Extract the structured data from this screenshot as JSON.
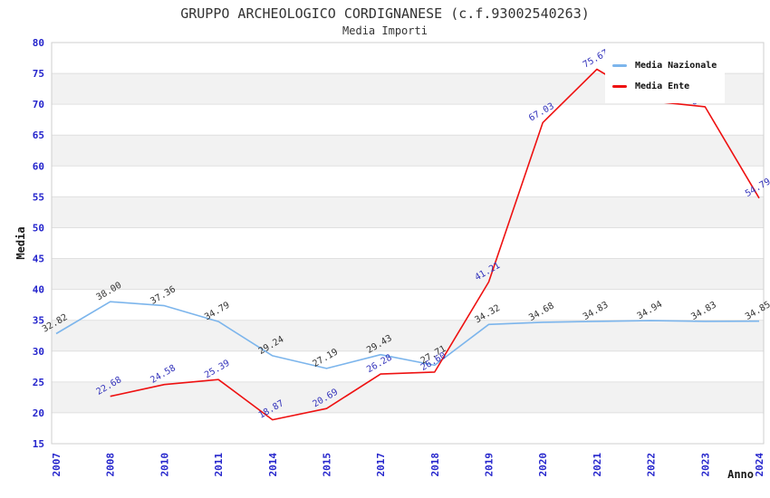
{
  "chart_data": {
    "type": "line",
    "title": "GRUPPO ARCHEOLOGICO CORDIGNANESE (c.f.93002540263)",
    "subtitle": "Media Importi",
    "xlabel": "Anno",
    "ylabel": "Media",
    "ylim": [
      15,
      80
    ],
    "ytick_step": 5,
    "grid": true,
    "legend_position": "top-right",
    "categories": [
      "2007",
      "2008",
      "2010",
      "2011",
      "2014",
      "2015",
      "2017",
      "2018",
      "2019",
      "2020",
      "2021",
      "2022",
      "2023",
      "2024"
    ],
    "series": [
      {
        "name": "Media Nazionale",
        "color": "#7cb5ec",
        "label_color": "#333333",
        "values": [
          32.82,
          38.0,
          37.36,
          34.79,
          29.24,
          27.19,
          29.43,
          27.71,
          34.32,
          34.68,
          34.83,
          34.94,
          34.83,
          34.85
        ],
        "labels": [
          "32.82",
          "38.00",
          "37.36",
          "34.79",
          "29.24",
          "27.19",
          "29.43",
          "27.71",
          "34.32",
          "34.68",
          "34.83",
          "34.94",
          "34.83",
          "34.85"
        ]
      },
      {
        "name": "Media Ente",
        "color": "#ee1111",
        "label_color": "#3333bb",
        "values": [
          null,
          22.68,
          24.58,
          25.39,
          18.87,
          20.69,
          26.28,
          26.6,
          41.21,
          67.03,
          75.67,
          70.5,
          69.6,
          54.79
        ],
        "labels": [
          "",
          "22.68",
          "24.58",
          "25.39",
          "18.87",
          "20.69",
          "26.28",
          "26.60",
          "41.21",
          "67.03",
          "75.67",
          "",
          "69.60",
          "54.79"
        ]
      }
    ],
    "colors": {
      "tick_label": "#2424cc",
      "grid_line": "#e0e0e0",
      "band_fill": "#f2f2f2",
      "plot_border": "#cfcfcf",
      "axis_title": "#1a1a1a",
      "title_text": "#333333",
      "background": "#ffffff"
    }
  }
}
